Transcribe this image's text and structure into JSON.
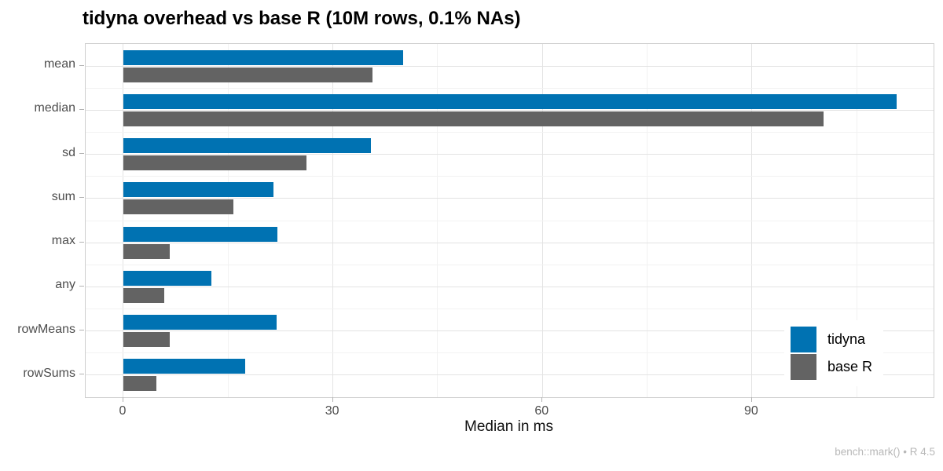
{
  "title": "tidyna overhead vs base R (10M rows, 0.1% NAs)",
  "caption": "bench::mark() • R 4.5",
  "chart_data": {
    "type": "bar",
    "orientation": "horizontal",
    "title": "tidyna overhead vs base R (10M rows, 0.1% NAs)",
    "xlabel": "Median in ms",
    "ylabel": "",
    "categories": [
      "mean",
      "median",
      "sd",
      "sum",
      "max",
      "any",
      "rowMeans",
      "rowSums"
    ],
    "series": [
      {
        "name": "tidyna",
        "color": "#0072B2",
        "values": [
          40.1,
          110.7,
          35.4,
          21.5,
          22.0,
          12.6,
          21.9,
          17.4
        ]
      },
      {
        "name": "base R",
        "color": "#636363",
        "values": [
          35.7,
          100.2,
          26.2,
          15.7,
          6.6,
          5.8,
          6.6,
          4.7
        ]
      }
    ],
    "xticks": [
      0,
      30,
      60,
      90
    ],
    "xticks_minor": [
      15,
      45,
      75,
      105
    ],
    "xlim": [
      -5.4,
      116
    ],
    "grid": true,
    "legend_position": "inside-right",
    "panel_background": "#ffffff",
    "panel_border_color": "#cfcfcf",
    "grid_major_color": "#e3e3e3",
    "grid_minor_color": "#f2f2f2"
  }
}
